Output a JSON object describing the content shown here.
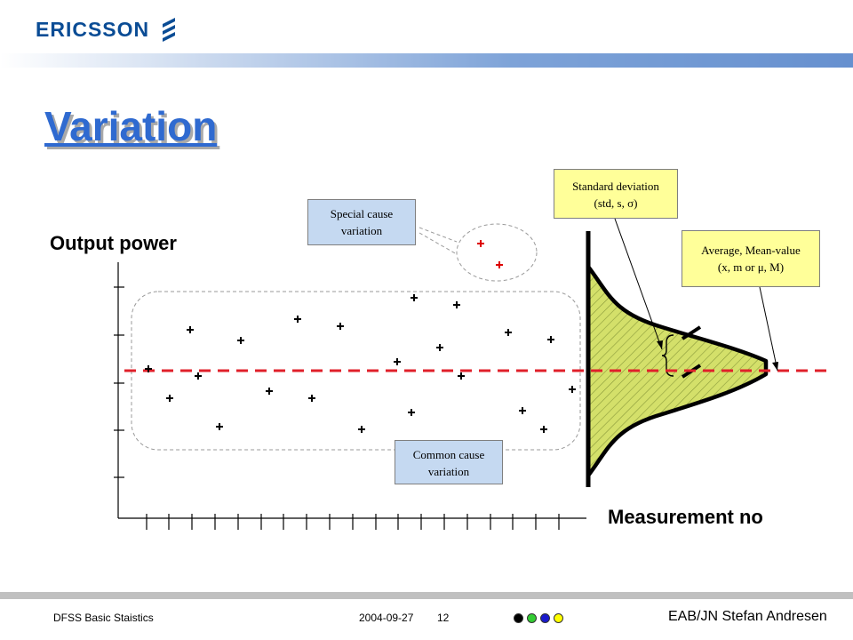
{
  "header": {
    "logo_text": "ERICSSON"
  },
  "slide": {
    "title": "Variation",
    "y_axis_label": "Output power",
    "x_axis_label": "Measurement no"
  },
  "callouts": {
    "special_cause": {
      "line1": "Special cause",
      "line2": "variation"
    },
    "common_cause": {
      "line1": "Common cause",
      "line2": "variation"
    },
    "std_dev": {
      "line1": "Standard deviation",
      "line2": "(std, s, σ)"
    },
    "average": {
      "line1": "Average, Mean-value",
      "line2": "(x, m or μ, M)"
    }
  },
  "footer": {
    "left": "DFSS Basic Staistics",
    "date": "2004-09-27",
    "page": "12",
    "author": "EAB/JN Stefan Andresen",
    "dot_colors": [
      "#000000",
      "#33cc33",
      "#1a1acc",
      "#ffff00"
    ]
  },
  "colors": {
    "title": "#2f6ad0",
    "mean_line": "#e0202a",
    "special_points": "#dd0000",
    "distribution_fill": "#d4e06a"
  }
}
